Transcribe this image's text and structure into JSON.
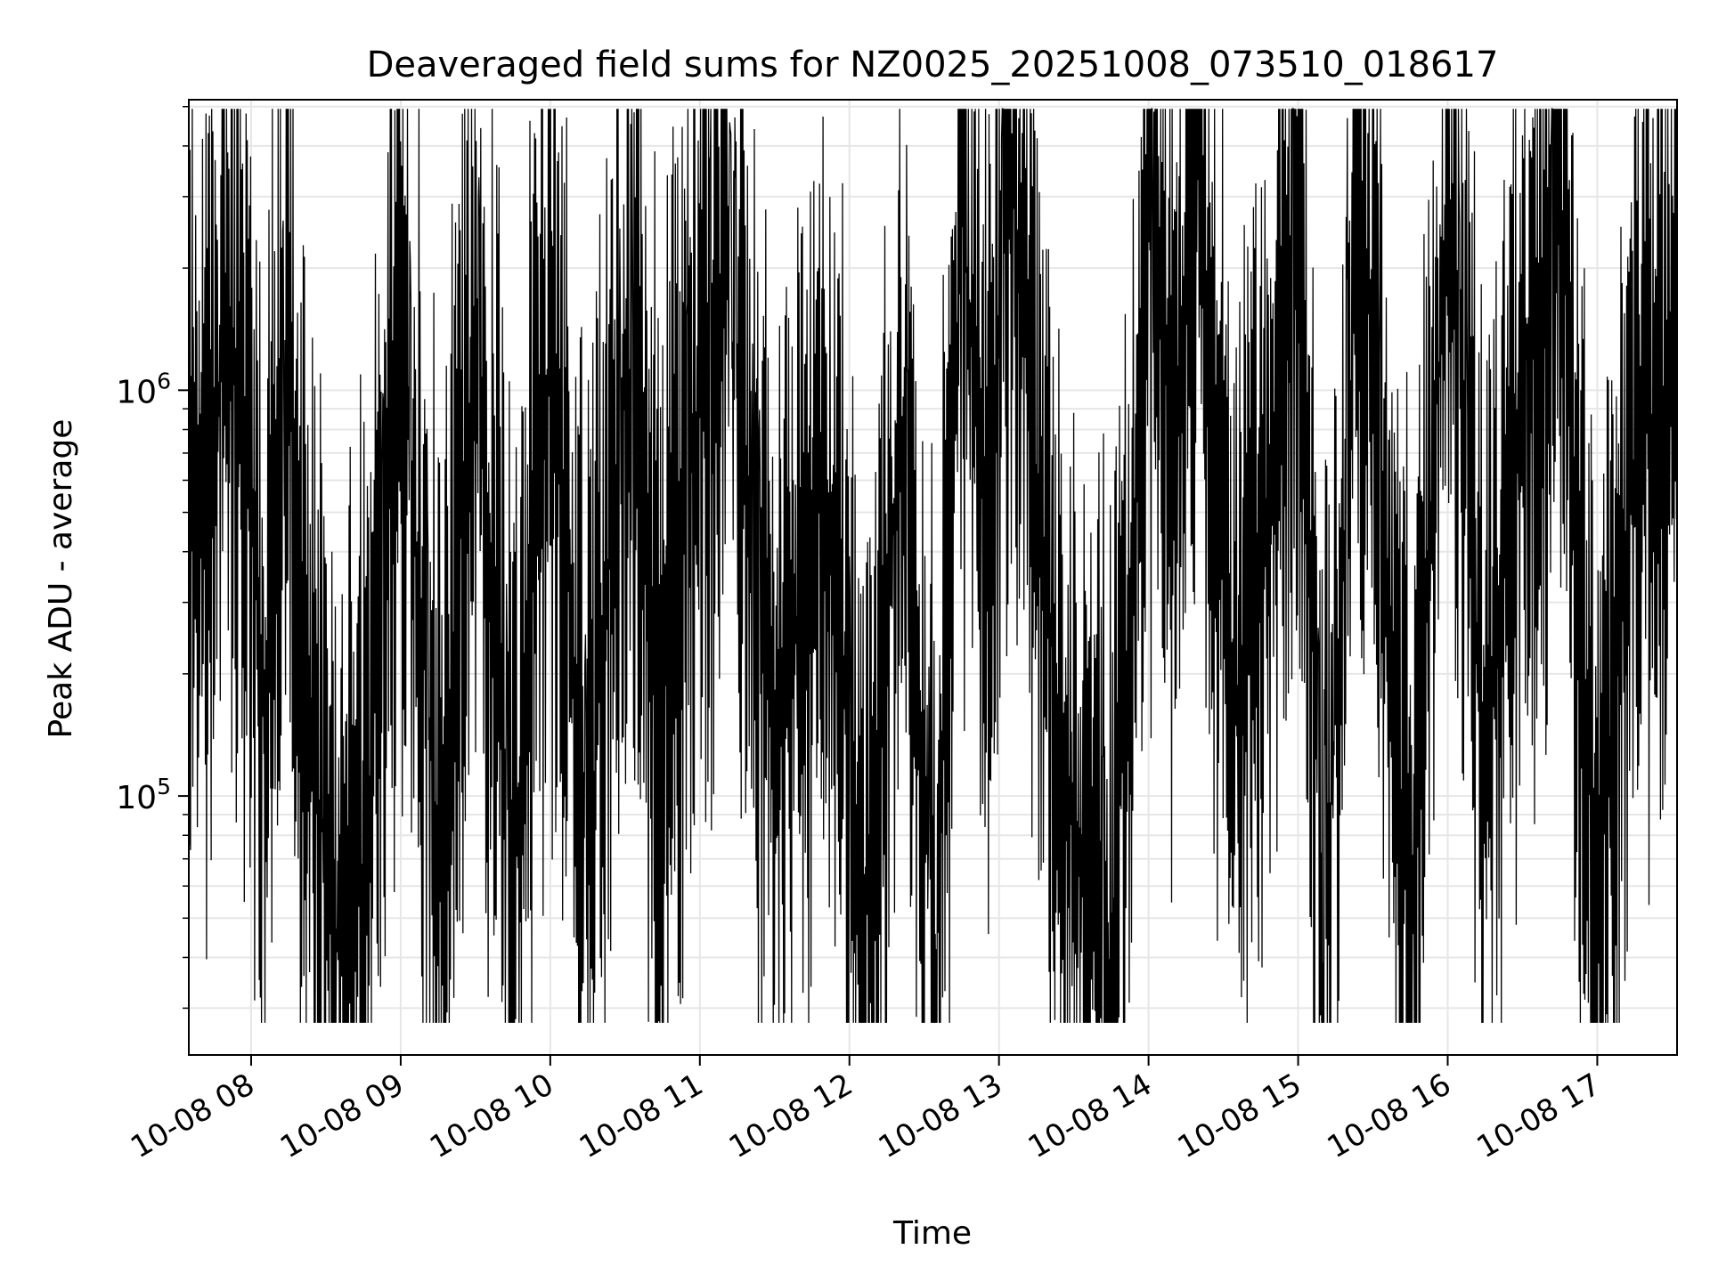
{
  "chart_data": {
    "type": "line",
    "title": "Deaveraged field sums for NZ0025_20251008_073510_018617",
    "xlabel": "Time",
    "ylabel": "Peak ADU - average",
    "x_axis_type": "datetime",
    "y_scale": "log",
    "grid": true,
    "legend": "none",
    "colors": {
      "line": "#000000",
      "grid": "#e6e6e6",
      "axes": "#000000"
    },
    "x_ticks": [
      "10-08 08",
      "10-08 09",
      "10-08 10",
      "10-08 11",
      "10-08 12",
      "10-08 13",
      "10-08 14",
      "10-08 15",
      "10-08 16",
      "10-08 17"
    ],
    "y_ticks": [
      {
        "value": 100000,
        "base": "10",
        "exp": "5"
      },
      {
        "value": 1000000,
        "base": "10",
        "exp": "6"
      }
    ],
    "xlim": [
      "2025-10-08 07:35",
      "2025-10-08 17:32"
    ],
    "ylim": [
      23000,
      5200000
    ],
    "series": [
      {
        "values": [
          [
            "2025-10-08 07:35",
            620000
          ],
          [
            "2025-10-08 07:45",
            700000
          ],
          [
            "2025-10-08 07:50",
            1900000
          ],
          [
            "2025-10-08 07:55",
            800000
          ],
          [
            "2025-10-08 08:00",
            500000
          ],
          [
            "2025-10-08 08:05",
            150000
          ],
          [
            "2025-10-08 08:15",
            1400000
          ],
          [
            "2025-10-08 08:25",
            120000
          ],
          [
            "2025-10-08 08:35",
            40000
          ],
          [
            "2025-10-08 08:45",
            60000
          ],
          [
            "2025-10-08 09:00",
            1550000
          ],
          [
            "2025-10-08 09:15",
            70000
          ],
          [
            "2025-10-08 09:30",
            1500000
          ],
          [
            "2025-10-08 09:45",
            65000
          ],
          [
            "2025-10-08 10:00",
            1400000
          ],
          [
            "2025-10-08 10:15",
            70000
          ],
          [
            "2025-10-08 10:30",
            1250000
          ],
          [
            "2025-10-08 10:45",
            200000
          ],
          [
            "2025-10-08 11:00",
            900000
          ],
          [
            "2025-10-08 11:10",
            2000000
          ],
          [
            "2025-10-08 11:30",
            130000
          ],
          [
            "2025-10-08 11:50",
            700000
          ],
          [
            "2025-10-08 12:05",
            45000
          ],
          [
            "2025-10-08 12:20",
            700000
          ],
          [
            "2025-10-08 12:35",
            38000
          ],
          [
            "2025-10-08 12:45",
            2800000
          ],
          [
            "2025-10-08 12:55",
            450000
          ],
          [
            "2025-10-08 13:05",
            4200000
          ],
          [
            "2025-10-08 13:15",
            500000
          ],
          [
            "2025-10-08 13:30",
            80000
          ],
          [
            "2025-10-08 13:45",
            35000
          ],
          [
            "2025-10-08 14:00",
            2500000
          ],
          [
            "2025-10-08 14:10",
            800000
          ],
          [
            "2025-10-08 14:20",
            4000000
          ],
          [
            "2025-10-08 14:35",
            150000
          ],
          [
            "2025-10-08 14:50",
            700000
          ],
          [
            "2025-10-08 15:00",
            3500000
          ],
          [
            "2025-10-08 15:10",
            35000
          ],
          [
            "2025-10-08 15:25",
            3300000
          ],
          [
            "2025-10-08 15:45",
            45000
          ],
          [
            "2025-10-08 16:00",
            3000000
          ],
          [
            "2025-10-08 16:15",
            100000
          ],
          [
            "2025-10-08 16:30",
            1200000
          ],
          [
            "2025-10-08 16:45",
            3200000
          ],
          [
            "2025-10-08 17:00",
            50000
          ],
          [
            "2025-10-08 17:15",
            700000
          ],
          [
            "2025-10-08 17:30",
            1000000
          ]
        ]
      }
    ]
  }
}
